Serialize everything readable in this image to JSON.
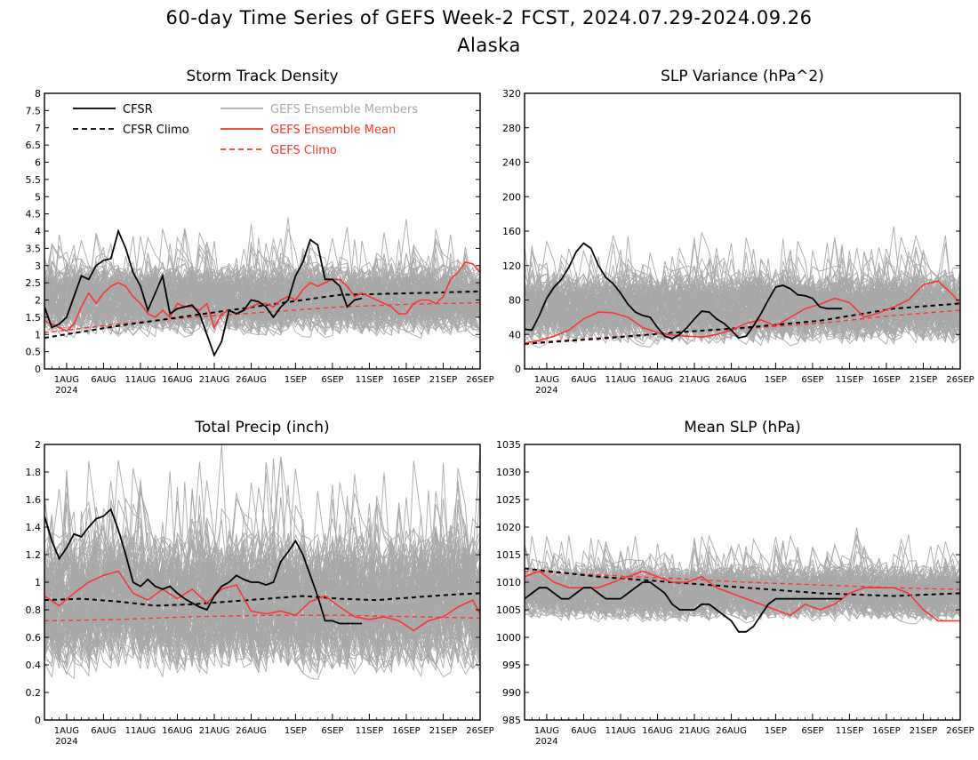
{
  "header": {
    "title": "60-day Time Series of GEFS Week-2 FCST, 2024.07.29-2024.09.26",
    "subtitle": "Alaska"
  },
  "colors": {
    "cfsr": "#000000",
    "members": "#a9a9a9",
    "ens_mean": "#ff3030",
    "gefs_climo": "#ff3030"
  },
  "legend": {
    "cfsr": "CFSR",
    "cfsr_climo": "CFSR Climo",
    "members": "GEFS Ensemble Members",
    "ens_mean": "GEFS Ensemble Mean",
    "gefs_climo": "GEFS Climo"
  },
  "x_axis": {
    "ticks": [
      {
        "label": "1AUG",
        "day": 3
      },
      {
        "label": "6AUG",
        "day": 8
      },
      {
        "label": "11AUG",
        "day": 13
      },
      {
        "label": "16AUG",
        "day": 18
      },
      {
        "label": "21AUG",
        "day": 23
      },
      {
        "label": "26AUG",
        "day": 28
      },
      {
        "label": "1SEP",
        "day": 34
      },
      {
        "label": "6SEP",
        "day": 39
      },
      {
        "label": "11SEP",
        "day": 44
      },
      {
        "label": "16SEP",
        "day": 49
      },
      {
        "label": "21SEP",
        "day": 54
      },
      {
        "label": "26SEP",
        "day": 59
      }
    ],
    "year_label": "2024"
  },
  "chart_data": [
    {
      "type": "line",
      "title": "Storm Track Density",
      "x": "days 0-59 from 2024-07-29",
      "ylim": [
        0,
        8
      ],
      "yticks": [
        "0",
        "0.5",
        "1",
        "1.5",
        "2",
        "2.5",
        "3",
        "3.5",
        "4",
        "4.5",
        "5",
        "5.5",
        "6",
        "6.5",
        "7",
        "7.5",
        "8"
      ],
      "members": {
        "center": 2.0,
        "spread": 1.0
      },
      "series": [
        {
          "name": "CFSR",
          "x": [
            0,
            1,
            2,
            3,
            4,
            5,
            6,
            7,
            8,
            9,
            10,
            11,
            12,
            13,
            14,
            15,
            16,
            17,
            18,
            19,
            20,
            21,
            22,
            23,
            24,
            25,
            26,
            27,
            28,
            29,
            30,
            31,
            32,
            33,
            34,
            35,
            36,
            37,
            38,
            39,
            40,
            41,
            42,
            43
          ],
          "values": [
            1.8,
            1.2,
            1.3,
            1.5,
            2.1,
            2.7,
            2.6,
            3.0,
            3.15,
            3.2,
            4.0,
            3.5,
            2.8,
            2.4,
            1.7,
            2.2,
            2.7,
            1.6,
            1.75,
            1.8,
            1.85,
            1.6,
            1.0,
            0.4,
            0.8,
            1.7,
            1.6,
            1.7,
            2.0,
            1.95,
            1.8,
            1.5,
            1.8,
            2.0,
            2.7,
            3.1,
            3.75,
            3.6,
            2.6,
            2.6,
            2.4,
            1.8,
            2.0,
            2.05
          ]
        },
        {
          "name": "CFSR Climo",
          "x": [
            0,
            10,
            20,
            30,
            40,
            50,
            59
          ],
          "values": [
            0.9,
            1.25,
            1.55,
            1.85,
            2.15,
            2.2,
            2.25
          ]
        },
        {
          "name": "GEFS Ensemble Mean",
          "x": [
            0,
            1,
            2,
            3,
            4,
            5,
            6,
            7,
            8,
            9,
            10,
            11,
            12,
            13,
            14,
            15,
            16,
            17,
            18,
            19,
            20,
            21,
            22,
            23,
            24,
            25,
            26,
            27,
            28,
            29,
            30,
            31,
            32,
            33,
            34,
            35,
            36,
            37,
            38,
            39,
            40,
            41,
            42,
            43,
            44,
            45,
            46,
            47,
            48,
            49,
            50,
            51,
            52,
            53,
            54,
            55,
            56,
            57,
            58,
            59
          ],
          "values": [
            1.4,
            1.3,
            1.2,
            1.1,
            1.3,
            1.8,
            2.2,
            1.9,
            2.2,
            2.4,
            2.5,
            2.4,
            2.1,
            1.9,
            1.6,
            1.5,
            1.7,
            1.5,
            1.9,
            1.8,
            1.8,
            1.7,
            1.9,
            1.2,
            1.6,
            1.7,
            1.6,
            1.7,
            1.8,
            1.9,
            1.9,
            1.8,
            2.0,
            2.1,
            2.0,
            2.3,
            2.5,
            2.4,
            2.5,
            2.6,
            2.6,
            2.4,
            2.1,
            2.2,
            2.1,
            2.0,
            1.9,
            1.8,
            1.6,
            1.6,
            1.9,
            2.0,
            2.0,
            1.9,
            2.1,
            2.6,
            2.8,
            3.1,
            3.05,
            2.8
          ]
        },
        {
          "name": "GEFS Climo",
          "x": [
            0,
            10,
            20,
            30,
            40,
            50,
            59
          ],
          "values": [
            1.05,
            1.3,
            1.5,
            1.65,
            1.8,
            1.88,
            1.92
          ]
        }
      ]
    },
    {
      "type": "line",
      "title": "SLP Variance (hPa^2)",
      "x": "days 0-59 from 2024-07-29",
      "ylim": [
        0,
        320
      ],
      "yticks": [
        "0",
        "40",
        "80",
        "120",
        "160",
        "200",
        "240",
        "280",
        "320"
      ],
      "members": {
        "center": 70,
        "spread": 40
      },
      "series": [
        {
          "name": "CFSR",
          "x": [
            0,
            1,
            2,
            3,
            4,
            5,
            6,
            7,
            8,
            9,
            10,
            11,
            12,
            13,
            14,
            15,
            16,
            17,
            18,
            19,
            20,
            21,
            22,
            23,
            24,
            25,
            26,
            27,
            28,
            29,
            30,
            31,
            32,
            33,
            34,
            35,
            36,
            37,
            38,
            39,
            40,
            41,
            42,
            43
          ],
          "values": [
            46,
            45,
            62,
            82,
            95,
            104,
            118,
            136,
            146,
            140,
            120,
            106,
            99,
            88,
            75,
            66,
            62,
            60,
            48,
            38,
            35,
            40,
            48,
            58,
            67,
            66,
            58,
            53,
            45,
            36,
            38,
            50,
            64,
            80,
            95,
            97,
            93,
            86,
            85,
            82,
            72,
            70,
            70,
            70
          ]
        },
        {
          "name": "CFSR Climo",
          "x": [
            0,
            10,
            20,
            30,
            40,
            50,
            59
          ],
          "values": [
            29,
            35,
            42,
            48,
            56,
            70,
            76
          ]
        },
        {
          "name": "GEFS Ensemble Mean",
          "x": [
            0,
            2,
            4,
            6,
            8,
            10,
            12,
            14,
            16,
            18,
            20,
            22,
            24,
            26,
            28,
            30,
            32,
            34,
            36,
            38,
            40,
            42,
            44,
            46,
            48,
            50,
            52,
            54,
            56,
            58,
            59
          ],
          "values": [
            30,
            33,
            38,
            45,
            58,
            66,
            65,
            60,
            48,
            42,
            39,
            38,
            37,
            40,
            45,
            53,
            57,
            50,
            60,
            70,
            75,
            82,
            77,
            60,
            65,
            72,
            80,
            98,
            102,
            86,
            75
          ]
        },
        {
          "name": "GEFS Climo",
          "x": [
            0,
            10,
            20,
            30,
            40,
            50,
            59
          ],
          "values": [
            30,
            36,
            42,
            47,
            53,
            62,
            68
          ]
        }
      ]
    },
    {
      "type": "line",
      "title": "Total Precip (inch)",
      "x": "days 0-59 from 2024-07-29",
      "ylim": [
        0,
        2
      ],
      "yticks": [
        "0",
        "0.2",
        "0.4",
        "0.6",
        "0.8",
        "1",
        "1.2",
        "1.4",
        "1.6",
        "1.8",
        "2"
      ],
      "members": {
        "center": 0.85,
        "spread": 0.5
      },
      "series": [
        {
          "name": "CFSR",
          "x": [
            0,
            1,
            2,
            3,
            4,
            5,
            6,
            7,
            8,
            9,
            10,
            11,
            12,
            13,
            14,
            15,
            16,
            17,
            18,
            19,
            20,
            21,
            22,
            23,
            24,
            25,
            26,
            27,
            28,
            29,
            30,
            31,
            32,
            33,
            34,
            35,
            36,
            37,
            38,
            39,
            40,
            41,
            42,
            43
          ],
          "values": [
            1.48,
            1.3,
            1.17,
            1.25,
            1.35,
            1.33,
            1.4,
            1.46,
            1.48,
            1.53,
            1.38,
            1.2,
            1.0,
            0.97,
            1.02,
            0.97,
            0.95,
            0.97,
            0.92,
            0.88,
            0.85,
            0.82,
            0.8,
            0.9,
            0.97,
            1.0,
            1.05,
            1.02,
            1.0,
            1.0,
            0.98,
            1.0,
            1.15,
            1.22,
            1.3,
            1.2,
            1.05,
            0.9,
            0.72,
            0.72,
            0.7,
            0.7,
            0.7,
            0.7
          ]
        },
        {
          "name": "CFSR Climo",
          "x": [
            0,
            5,
            10,
            15,
            20,
            25,
            30,
            35,
            40,
            45,
            50,
            55,
            59
          ],
          "values": [
            0.87,
            0.88,
            0.86,
            0.83,
            0.84,
            0.86,
            0.88,
            0.9,
            0.88,
            0.87,
            0.89,
            0.91,
            0.92
          ]
        },
        {
          "name": "GEFS Ensemble Mean",
          "x": [
            0,
            2,
            4,
            6,
            8,
            10,
            12,
            14,
            16,
            18,
            20,
            22,
            24,
            26,
            28,
            30,
            32,
            34,
            36,
            38,
            40,
            42,
            44,
            46,
            48,
            50,
            52,
            54,
            56,
            58,
            59
          ],
          "values": [
            0.9,
            0.83,
            0.92,
            1.0,
            1.05,
            1.08,
            0.92,
            0.87,
            0.95,
            0.88,
            0.95,
            0.85,
            0.95,
            0.98,
            0.79,
            0.77,
            0.79,
            0.76,
            0.86,
            0.9,
            0.82,
            0.75,
            0.73,
            0.75,
            0.72,
            0.65,
            0.72,
            0.75,
            0.82,
            0.87,
            0.77
          ]
        },
        {
          "name": "GEFS Climo",
          "x": [
            0,
            10,
            20,
            30,
            40,
            50,
            59
          ],
          "values": [
            0.72,
            0.73,
            0.75,
            0.76,
            0.76,
            0.75,
            0.74
          ]
        }
      ]
    },
    {
      "type": "line",
      "title": "Mean SLP (hPa)",
      "x": "days 0-59 from 2024-07-29",
      "ylim": [
        985,
        1035
      ],
      "yticks": [
        "985",
        "990",
        "995",
        "1000",
        "1005",
        "1010",
        "1015",
        "1020",
        "1025",
        "1030",
        "1035"
      ],
      "members": {
        "center": 1008,
        "spread": 5
      },
      "series": [
        {
          "name": "CFSR",
          "x": [
            0,
            1,
            2,
            3,
            4,
            5,
            6,
            7,
            8,
            9,
            10,
            11,
            12,
            13,
            14,
            15,
            16,
            17,
            18,
            19,
            20,
            21,
            22,
            23,
            24,
            25,
            26,
            27,
            28,
            29,
            30,
            31,
            32,
            33,
            34,
            35,
            36,
            37,
            38,
            39,
            40,
            41,
            42,
            43
          ],
          "values": [
            1007,
            1008,
            1009,
            1009,
            1008,
            1007,
            1007,
            1008,
            1009,
            1009,
            1008,
            1007,
            1007,
            1007,
            1008,
            1009,
            1010,
            1010,
            1009,
            1008,
            1006,
            1005,
            1005,
            1005,
            1006,
            1006,
            1005,
            1004,
            1003,
            1001,
            1001,
            1002,
            1004,
            1006,
            1007,
            1007,
            1007,
            1007,
            1007,
            1007,
            1007,
            1007,
            1007,
            1007
          ]
        },
        {
          "name": "CFSR Climo",
          "x": [
            0,
            10,
            20,
            30,
            40,
            50,
            59
          ],
          "values": [
            1012.5,
            1011,
            1010,
            1009,
            1008,
            1007.5,
            1008
          ]
        },
        {
          "name": "GEFS Ensemble Mean",
          "x": [
            0,
            2,
            4,
            6,
            8,
            10,
            12,
            14,
            16,
            18,
            20,
            22,
            24,
            26,
            28,
            30,
            32,
            34,
            36,
            38,
            40,
            42,
            44,
            46,
            48,
            50,
            52,
            54,
            56,
            58,
            59
          ],
          "values": [
            1011,
            1012,
            1010,
            1009,
            1009,
            1009,
            1010,
            1011,
            1012,
            1011,
            1010,
            1010,
            1011,
            1009,
            1008,
            1007,
            1006,
            1005,
            1004,
            1006,
            1005,
            1006,
            1008,
            1009,
            1009,
            1009,
            1008,
            1005,
            1003,
            1003,
            1003
          ]
        },
        {
          "name": "GEFS Climo",
          "x": [
            0,
            10,
            20,
            30,
            40,
            50,
            59
          ],
          "values": [
            1012,
            1011.3,
            1010.7,
            1010,
            1009.5,
            1009,
            1008.7
          ]
        }
      ]
    }
  ]
}
